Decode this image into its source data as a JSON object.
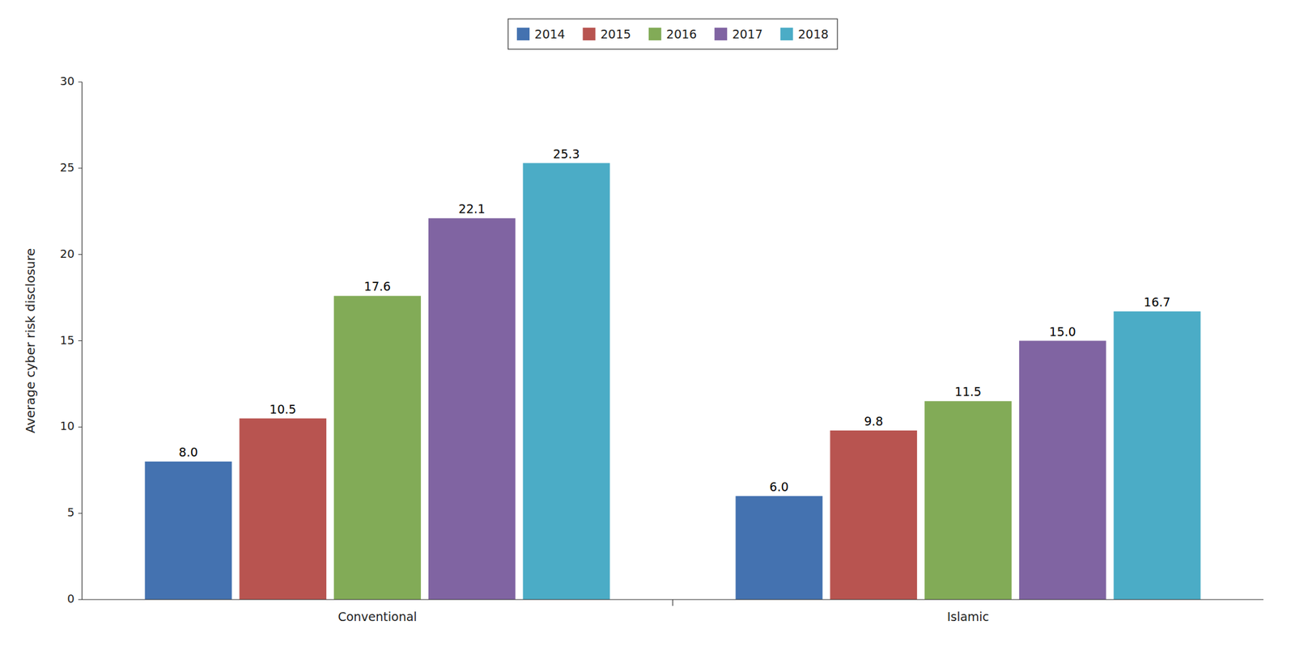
{
  "chart_data": {
    "type": "bar",
    "categories": [
      "Conventional",
      "Islamic"
    ],
    "series": [
      {
        "name": "2014",
        "color": "#4472b0",
        "values": [
          8.0,
          6.0
        ],
        "value_labels": [
          "8.0",
          "6.0"
        ]
      },
      {
        "name": "2015",
        "color": "#b85450",
        "values": [
          10.5,
          9.8
        ],
        "value_labels": [
          "10.5",
          "9.8"
        ]
      },
      {
        "name": "2016",
        "color": "#82ab57",
        "values": [
          17.6,
          11.5
        ],
        "value_labels": [
          "17.6",
          "11.5"
        ]
      },
      {
        "name": "2017",
        "color": "#8064a2",
        "values": [
          22.1,
          15.0
        ],
        "value_labels": [
          "22.1",
          "15.0"
        ]
      },
      {
        "name": "2018",
        "color": "#4bacc6",
        "values": [
          25.3,
          16.7
        ],
        "value_labels": [
          "25.3",
          "16.7"
        ]
      }
    ],
    "y_label": "Average cyber risk disclosure",
    "ylim": [
      0,
      30
    ],
    "yticks": [
      0,
      5,
      10,
      15,
      20,
      25,
      30
    ],
    "grid": false,
    "legend": "top",
    "data_labels": true
  }
}
